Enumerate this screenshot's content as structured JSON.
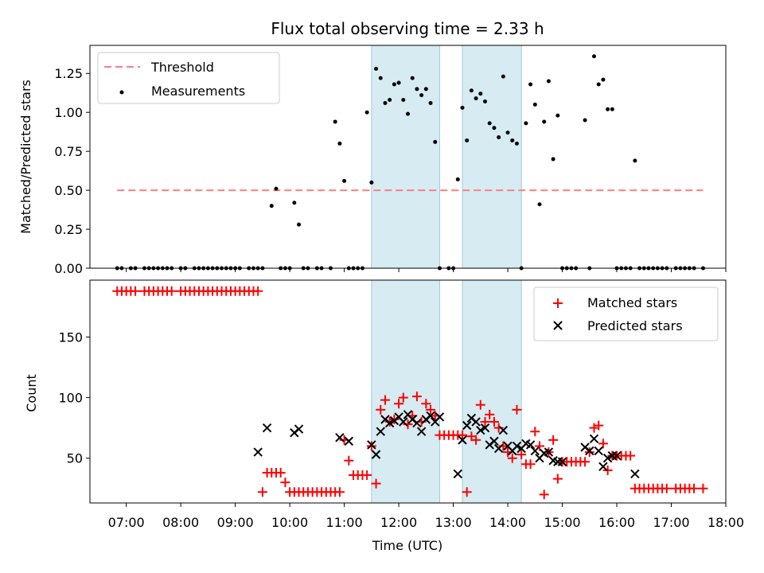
{
  "figure": {
    "title": "Flux total observing time = 2.33 h"
  },
  "chart_data": [
    {
      "type": "scatter",
      "panel": "top",
      "ylabel": "Matched/Predicted stars",
      "xlabel": "",
      "xlim": [
        "06:20",
        "18:00"
      ],
      "ylim": [
        0,
        1.43
      ],
      "yticks": [
        0.0,
        0.25,
        0.5,
        0.75,
        1.0,
        1.25
      ],
      "ytick_labels": [
        "0.00",
        "0.25",
        "0.50",
        "0.75",
        "1.00",
        "1.25"
      ],
      "legend": {
        "position": "top-left",
        "entries": [
          "Threshold",
          "Measurements"
        ]
      },
      "shaded_intervals": [
        [
          "11:30",
          "12:45"
        ],
        [
          "13:10",
          "14:15"
        ]
      ],
      "threshold": {
        "name": "Threshold",
        "value": 0.5,
        "x_range": [
          "06:50",
          "17:35"
        ],
        "color": "#ff7f7f",
        "style": "dashed"
      },
      "series": [
        {
          "name": "Measurements",
          "color": "#000000",
          "marker": "dot",
          "x": [
            "06:50",
            "06:55",
            "07:05",
            "07:10",
            "07:20",
            "07:25",
            "07:30",
            "07:35",
            "07:40",
            "07:45",
            "07:50",
            "08:00",
            "08:05",
            "08:15",
            "08:20",
            "08:25",
            "08:30",
            "08:35",
            "08:40",
            "08:45",
            "08:50",
            "08:55",
            "09:00",
            "09:05",
            "09:15",
            "09:20",
            "09:25",
            "09:30",
            "09:40",
            "09:45",
            "09:50",
            "09:55",
            "10:00",
            "10:05",
            "10:10",
            "10:15",
            "10:20",
            "10:30",
            "10:35",
            "10:45",
            "10:50",
            "10:55",
            "11:00",
            "11:05",
            "11:10",
            "11:15",
            "11:20",
            "11:25",
            "11:30",
            "11:35",
            "11:40",
            "11:45",
            "11:50",
            "11:55",
            "12:00",
            "12:05",
            "12:10",
            "12:15",
            "12:20",
            "12:25",
            "12:30",
            "12:35",
            "12:40",
            "12:45",
            "12:55",
            "13:00",
            "13:05",
            "13:10",
            "13:15",
            "13:20",
            "13:25",
            "13:30",
            "13:35",
            "13:40",
            "13:45",
            "13:50",
            "13:55",
            "14:00",
            "14:05",
            "14:10",
            "14:15",
            "14:20",
            "14:25",
            "14:30",
            "14:35",
            "14:40",
            "14:45",
            "14:50",
            "14:55",
            "15:00",
            "15:05",
            "15:10",
            "15:15",
            "15:25",
            "15:30",
            "15:35",
            "15:40",
            "15:45",
            "15:50",
            "15:55",
            "16:00",
            "16:05",
            "16:10",
            "16:15",
            "16:20",
            "16:25",
            "16:30",
            "16:35",
            "16:40",
            "16:45",
            "16:50",
            "16:55",
            "17:05",
            "17:10",
            "17:15",
            "17:20",
            "17:25",
            "17:35"
          ],
          "y": [
            0,
            0,
            0,
            0,
            0,
            0,
            0,
            0,
            0,
            0,
            0,
            0,
            0,
            0,
            0,
            0,
            0,
            0,
            0,
            0,
            0,
            0,
            0,
            0,
            0,
            0,
            0,
            0,
            0.4,
            0.51,
            0,
            0,
            0,
            0.42,
            0.28,
            0,
            0,
            0,
            0,
            0,
            0.94,
            0.8,
            0.56,
            0,
            0,
            0,
            0,
            1.0,
            0.55,
            1.28,
            1.22,
            1.06,
            1.08,
            1.18,
            1.19,
            1.08,
            0.99,
            1.22,
            1.15,
            1.11,
            1.15,
            1.06,
            0.81,
            0,
            0,
            0,
            0.57,
            1.03,
            0.82,
            1.14,
            1.09,
            1.12,
            1.07,
            0.93,
            0.9,
            0.84,
            1.23,
            0.87,
            0.82,
            0.8,
            0,
            0.93,
            1.18,
            1.05,
            0.41,
            0.94,
            1.2,
            0.7,
            0.98,
            0,
            0,
            0,
            0,
            0.95,
            0,
            1.36,
            1.18,
            1.21,
            1.02,
            1.02,
            0,
            0,
            0,
            0,
            0.69,
            0,
            0,
            0,
            0,
            0,
            0,
            0,
            0,
            0,
            0,
            0,
            0,
            0
          ]
        }
      ]
    },
    {
      "type": "scatter",
      "panel": "bottom",
      "ylabel": "Count",
      "xlabel": "Time (UTC)",
      "xlim": [
        "06:20",
        "18:00"
      ],
      "ylim": [
        13,
        197
      ],
      "yticks": [
        50,
        100,
        150
      ],
      "ytick_labels": [
        "50",
        "100",
        "150"
      ],
      "xticks": [
        "07:00",
        "08:00",
        "09:00",
        "10:00",
        "11:00",
        "12:00",
        "13:00",
        "14:00",
        "15:00",
        "16:00",
        "17:00",
        "18:00"
      ],
      "legend": {
        "position": "top-right",
        "entries": [
          "Matched stars",
          "Predicted stars"
        ]
      },
      "shaded_intervals": [
        [
          "11:30",
          "12:45"
        ],
        [
          "13:10",
          "14:15"
        ]
      ],
      "series": [
        {
          "name": "Matched stars",
          "color": "#ff0000",
          "marker": "plus",
          "x": [
            "06:50",
            "06:55",
            "07:00",
            "07:05",
            "07:10",
            "07:20",
            "07:25",
            "07:30",
            "07:35",
            "07:40",
            "07:45",
            "07:50",
            "08:00",
            "08:05",
            "08:10",
            "08:15",
            "08:20",
            "08:25",
            "08:30",
            "08:35",
            "08:40",
            "08:45",
            "08:50",
            "08:55",
            "09:00",
            "09:05",
            "09:10",
            "09:15",
            "09:20",
            "09:25",
            "09:30",
            "09:35",
            "09:40",
            "09:45",
            "09:50",
            "09:55",
            "10:00",
            "10:05",
            "10:10",
            "10:15",
            "10:20",
            "10:25",
            "10:30",
            "10:35",
            "10:40",
            "10:45",
            "10:50",
            "10:55",
            "11:00",
            "11:05",
            "11:10",
            "11:15",
            "11:20",
            "11:25",
            "11:30",
            "11:35",
            "11:40",
            "11:45",
            "11:50",
            "11:55",
            "12:00",
            "12:05",
            "12:10",
            "12:15",
            "12:20",
            "12:25",
            "12:30",
            "12:35",
            "12:40",
            "12:45",
            "12:50",
            "12:55",
            "13:00",
            "13:05",
            "13:10",
            "13:15",
            "13:20",
            "13:25",
            "13:30",
            "13:35",
            "13:40",
            "13:45",
            "13:50",
            "13:55",
            "14:00",
            "14:05",
            "14:10",
            "14:15",
            "14:20",
            "14:25",
            "14:30",
            "14:35",
            "14:40",
            "14:45",
            "14:50",
            "14:55",
            "15:00",
            "15:05",
            "15:10",
            "15:15",
            "15:20",
            "15:25",
            "15:30",
            "15:35",
            "15:40",
            "15:45",
            "15:50",
            "15:55",
            "16:00",
            "16:05",
            "16:10",
            "16:15",
            "16:20",
            "16:25",
            "16:30",
            "16:35",
            "16:40",
            "16:45",
            "16:50",
            "16:55",
            "17:05",
            "17:10",
            "17:15",
            "17:20",
            "17:25",
            "17:35"
          ],
          "y": [
            188,
            188,
            188,
            188,
            188,
            188,
            188,
            188,
            188,
            188,
            188,
            188,
            188,
            188,
            188,
            188,
            188,
            188,
            188,
            188,
            188,
            188,
            188,
            188,
            188,
            188,
            188,
            188,
            188,
            188,
            22,
            38,
            38,
            38,
            38,
            30,
            22,
            22,
            22,
            22,
            22,
            22,
            22,
            22,
            22,
            22,
            22,
            22,
            65,
            48,
            36,
            36,
            36,
            36,
            60,
            29,
            90,
            98,
            80,
            82,
            95,
            100,
            78,
            85,
            101,
            80,
            95,
            90,
            85,
            69,
            69,
            69,
            69,
            69,
            69,
            22,
            68,
            65,
            94,
            80,
            86,
            80,
            75,
            60,
            55,
            50,
            90,
            53,
            45,
            45,
            72,
            60,
            20,
            55,
            65,
            33,
            47,
            47,
            47,
            47,
            47,
            47,
            55,
            75,
            77,
            62,
            40,
            52,
            52,
            52,
            52,
            52,
            25,
            25,
            25,
            25,
            25,
            25,
            25,
            25,
            25,
            25,
            25,
            25,
            25,
            25
          ]
        },
        {
          "name": "Predicted stars",
          "color": "#000000",
          "marker": "x",
          "x": [
            "09:25",
            "09:35",
            "10:05",
            "10:10",
            "10:55",
            "11:05",
            "11:30",
            "11:35",
            "11:40",
            "11:45",
            "11:50",
            "11:55",
            "12:00",
            "12:05",
            "12:10",
            "12:15",
            "12:20",
            "12:25",
            "12:30",
            "12:35",
            "12:40",
            "12:45",
            "13:05",
            "13:10",
            "13:15",
            "13:20",
            "13:25",
            "13:30",
            "13:35",
            "13:40",
            "13:45",
            "13:50",
            "13:55",
            "14:00",
            "14:05",
            "14:10",
            "14:15",
            "14:20",
            "14:25",
            "14:30",
            "14:35",
            "14:40",
            "14:45",
            "14:50",
            "14:55",
            "15:00",
            "15:25",
            "15:30",
            "15:35",
            "15:40",
            "15:45",
            "15:50",
            "15:55",
            "16:00",
            "16:20"
          ],
          "y": [
            55,
            75,
            71,
            74,
            67,
            64,
            61,
            53,
            72,
            82,
            79,
            81,
            84,
            80,
            86,
            82,
            79,
            72,
            82,
            85,
            80,
            84,
            37,
            65,
            77,
            83,
            80,
            73,
            75,
            61,
            64,
            58,
            73,
            60,
            56,
            60,
            58,
            62,
            61,
            56,
            50,
            54,
            55,
            48,
            47,
            47,
            59,
            56,
            66,
            56,
            43,
            50,
            52,
            52,
            37
          ]
        }
      ]
    }
  ]
}
